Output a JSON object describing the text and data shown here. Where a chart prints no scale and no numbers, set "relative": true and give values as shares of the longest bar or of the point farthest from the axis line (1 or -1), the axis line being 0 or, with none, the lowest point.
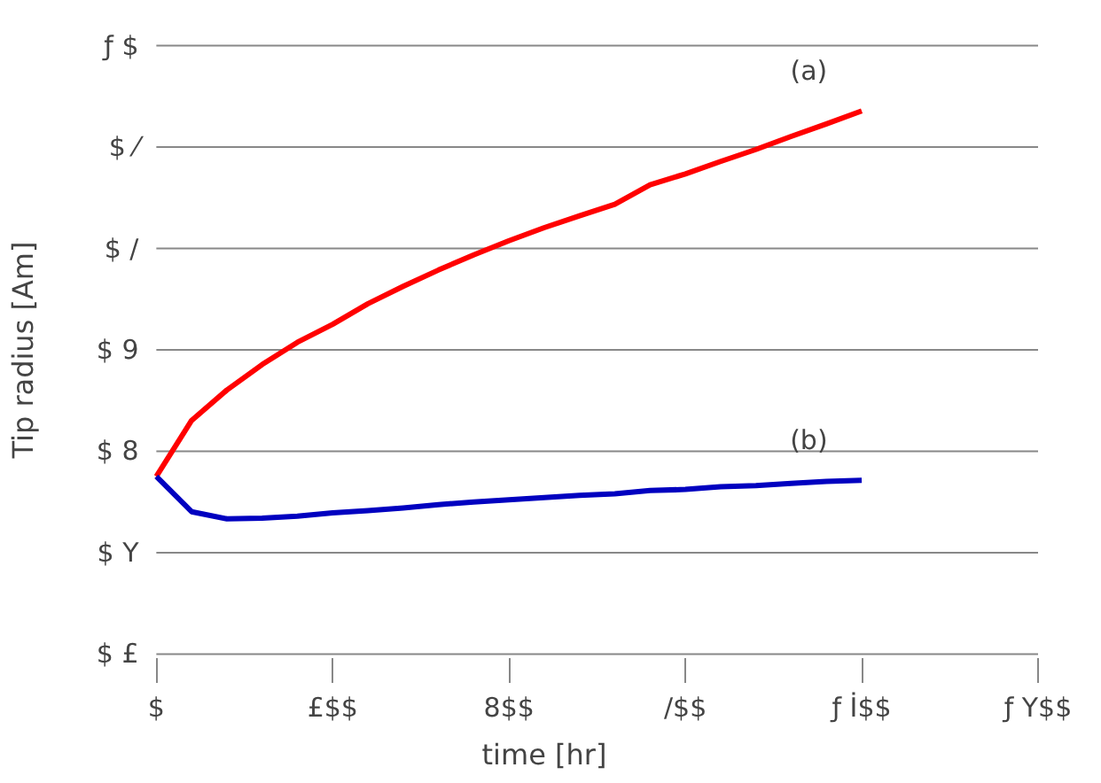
{
  "chart_data": {
    "type": "line",
    "xlabel": "time [hr]",
    "ylabel": "Tip radius [Am]",
    "relative": true,
    "categories": [
      "$",
      null,
      null,
      null,
      null,
      "£$$",
      null,
      null,
      null,
      null,
      "8$$",
      null,
      null,
      null,
      null,
      "/$$",
      null,
      null,
      null,
      null,
      "ƒ İ$$",
      null,
      null,
      null,
      null,
      "ƒ Y$$"
    ],
    "grid": "y",
    "line_style": "solid",
    "series": [
      {
        "color": "#ff0000",
        "values": [
          0.327,
          0.43,
          0.486,
          0.533,
          0.574,
          0.607,
          0.645,
          0.677,
          0.707,
          0.735,
          0.761,
          0.785,
          0.807,
          0.828,
          0.864,
          0.884,
          0.907,
          0.929,
          0.953,
          0.976,
          1,
          null,
          null,
          null,
          null,
          null
        ]
      },
      {
        "color": "#0000c0",
        "values": [
          0.327,
          0.262,
          0.249,
          0.25,
          0.254,
          0.26,
          0.264,
          0.269,
          0.275,
          0.28,
          0.284,
          0.288,
          0.292,
          0.295,
          0.301,
          0.303,
          0.308,
          0.31,
          0.314,
          0.318,
          0.32,
          null,
          null,
          null,
          null,
          null
        ]
      }
    ],
    "annotations": [
      "$ £",
      "$ Y",
      "$ 8",
      "$ 9",
      "$ /",
      "$ ⁄",
      "ƒ $",
      "(a)",
      "(b)"
    ]
  }
}
